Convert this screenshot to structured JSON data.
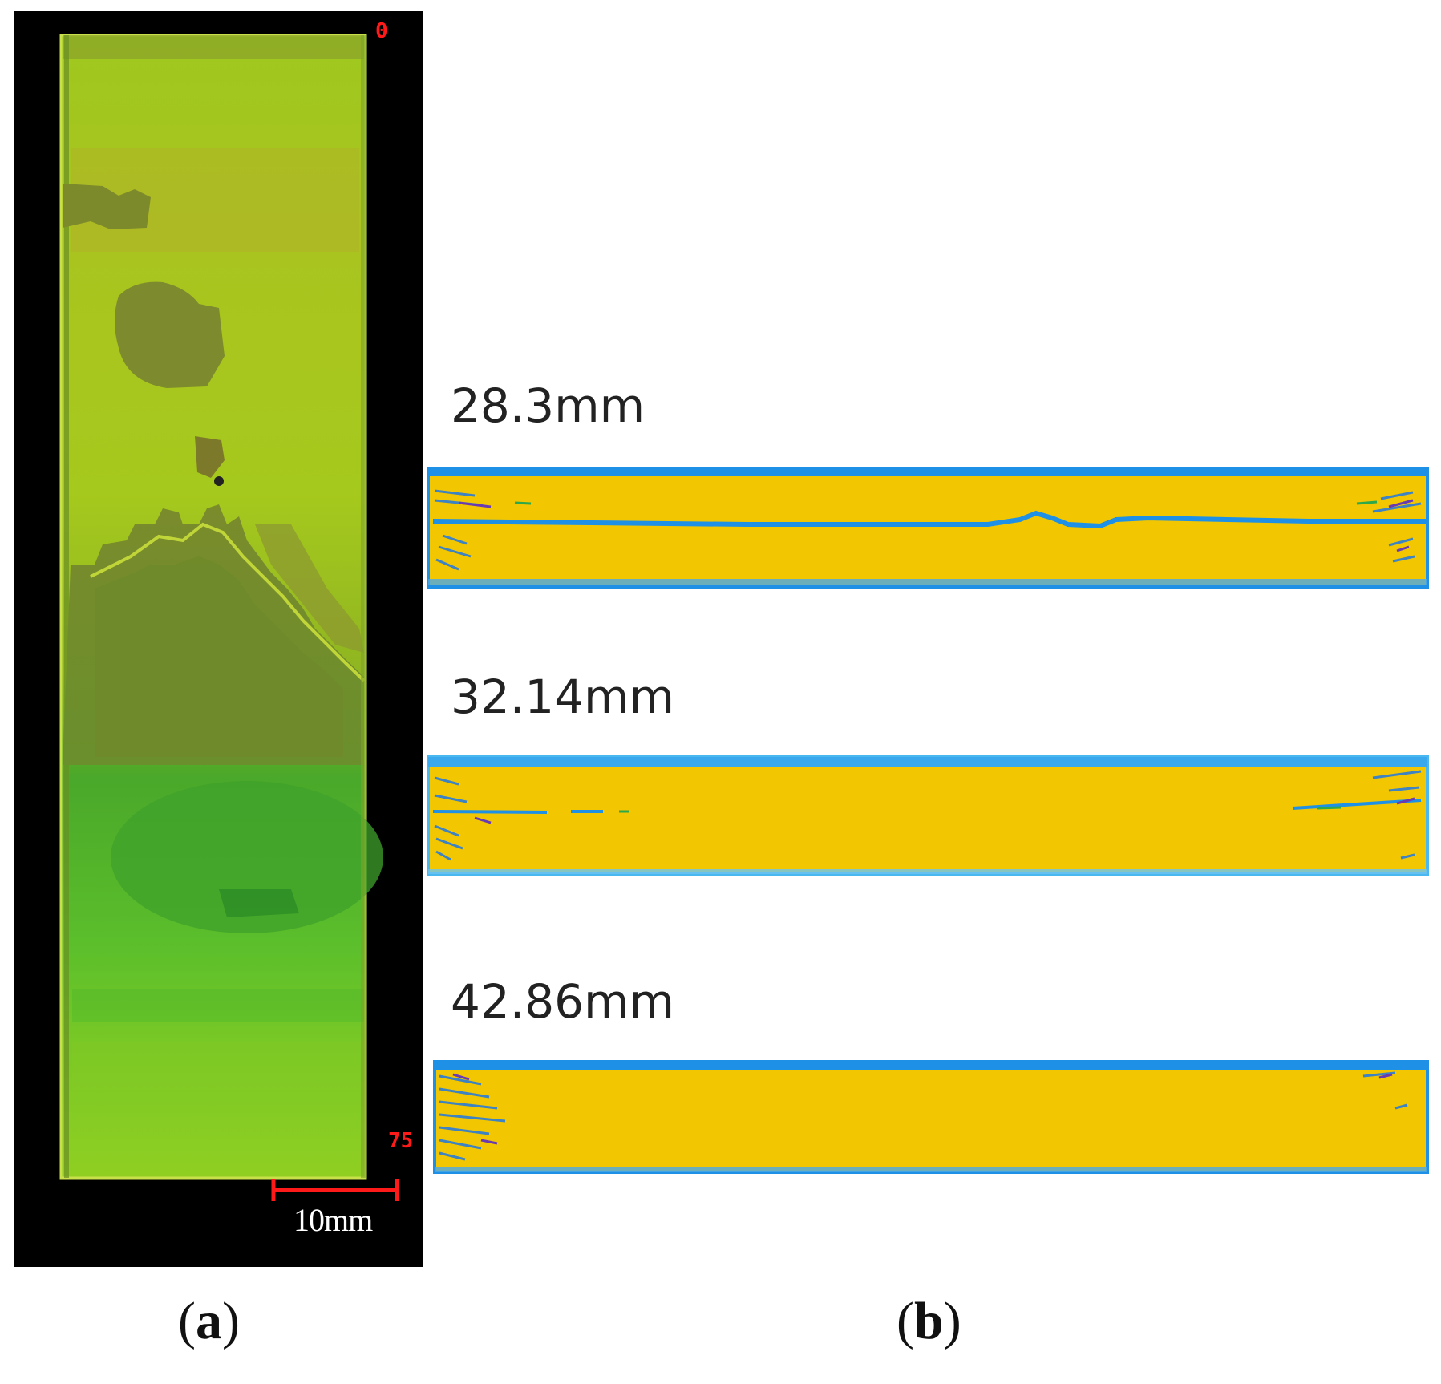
{
  "panel_a": {
    "label_open": "(",
    "label_letter": "a",
    "label_close": ")",
    "tick_top": "0",
    "tick_bottom": "75",
    "scale_bar_label": "10mm"
  },
  "panel_b": {
    "label_open": "(",
    "label_letter": "b",
    "label_close": ")",
    "slices": [
      {
        "depth_label": "28.3mm"
      },
      {
        "depth_label": "32.14mm"
      },
      {
        "depth_label": "42.86mm"
      }
    ]
  },
  "colors": {
    "background_a": "#000000",
    "scan_light_green": "#a6cc1c",
    "scan_olive": "#6f8a2a",
    "scan_green": "#4fb82a",
    "slice_fill": "#f2c600",
    "slice_edge": "#1e90e6",
    "annotation_red": "#ff1a1a"
  }
}
